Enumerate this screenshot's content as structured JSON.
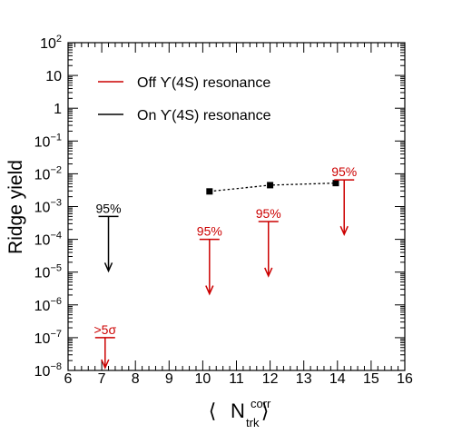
{
  "chart_data": {
    "type": "scatter",
    "xlabel": "⟨ N_trk^corr ⟩",
    "xlabel_parts": {
      "lbracket": "⟨",
      "main": "N",
      "sup": "corr",
      "sub": "trk",
      "rbracket": "⟩"
    },
    "ylabel": "Ridge yield",
    "xlim": [
      6,
      16
    ],
    "ylim": [
      1e-08,
      100
    ],
    "yscale": "log",
    "grid": false,
    "x_ticks": [
      "6",
      "7",
      "8",
      "9",
      "10",
      "11",
      "12",
      "13",
      "14",
      "15",
      "16"
    ],
    "y_ticks": [
      {
        "base": "10",
        "exp": "2",
        "value": 100
      },
      {
        "base": "10",
        "exp": "",
        "value": 10
      },
      {
        "base": "1",
        "exp": "",
        "value": 1
      },
      {
        "base": "10",
        "exp": "−1",
        "value": 0.1
      },
      {
        "base": "10",
        "exp": "−2",
        "value": 0.01
      },
      {
        "base": "10",
        "exp": "−3",
        "value": 0.001
      },
      {
        "base": "10",
        "exp": "−4",
        "value": 0.0001
      },
      {
        "base": "10",
        "exp": "−5",
        "value": 1e-05
      },
      {
        "base": "10",
        "exp": "−6",
        "value": 1e-06
      },
      {
        "base": "10",
        "exp": "−7",
        "value": 1e-07
      },
      {
        "base": "10",
        "exp": "−8",
        "value": 1e-08
      }
    ],
    "legend": {
      "placement": "top-left",
      "entries": [
        {
          "name": "Off ϒ(4S) resonance",
          "color": "#cc0000"
        },
        {
          "name": "On ϒ(4S) resonance",
          "color": "#000000"
        }
      ]
    },
    "measured": {
      "x": [
        10.2,
        12.0,
        13.95
      ],
      "y": [
        0.0029,
        0.0045,
        0.0052
      ],
      "color": "#000000"
    },
    "upper_limits": [
      {
        "x": 7.2,
        "y": 0.0005,
        "label": "95%",
        "color": "#000000"
      },
      {
        "x": 10.2,
        "y": 0.0001,
        "label": "95%",
        "color": "#cc0000"
      },
      {
        "x": 11.95,
        "y": 0.00035,
        "label": "95%",
        "color": "#cc0000"
      },
      {
        "x": 14.2,
        "y": 0.0065,
        "label": "95%",
        "color": "#cc0000"
      },
      {
        "x": 7.1,
        "y": 1e-07,
        "label": ">5σ",
        "color": "#cc0000"
      }
    ]
  }
}
